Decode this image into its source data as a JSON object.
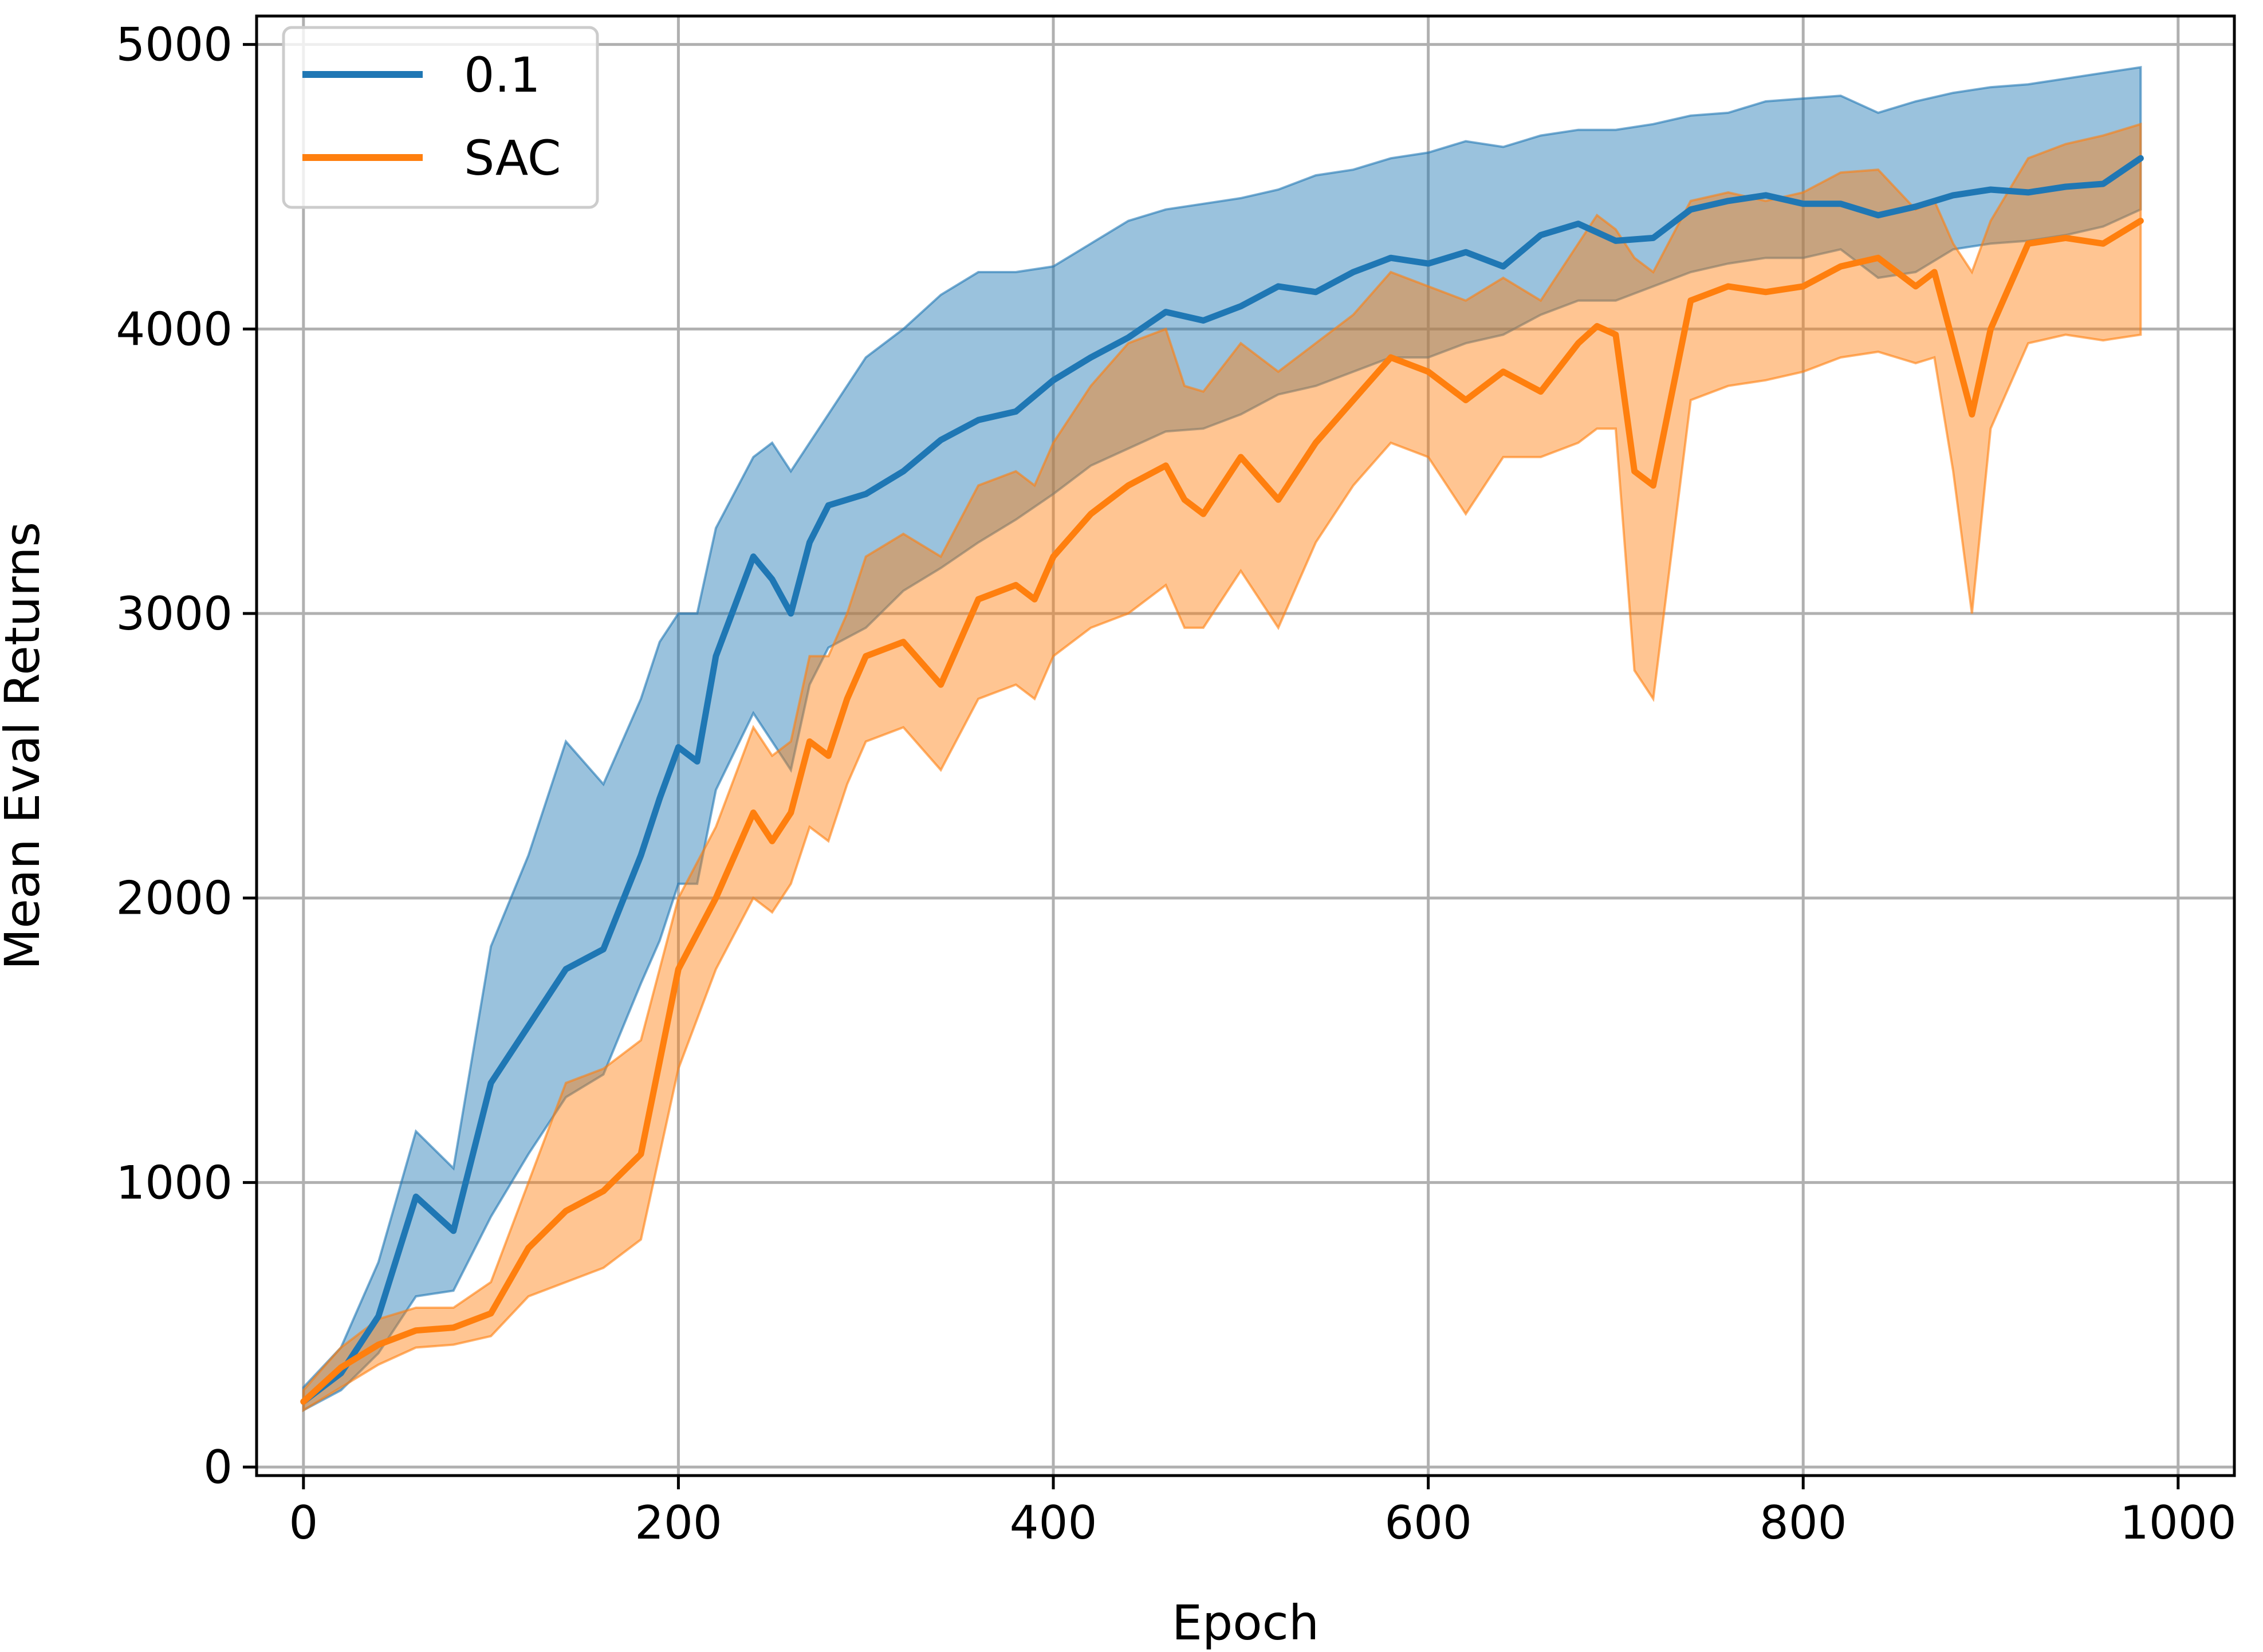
{
  "colors": {
    "series_0": "#1f77b4",
    "series_1": "#ff7f0e"
  },
  "chart_data": {
    "type": "line",
    "title": "",
    "xlabel": "Epoch",
    "ylabel": "Mean Eval Returns",
    "xlim": [
      -25,
      1030
    ],
    "ylim": [
      -30,
      5100
    ],
    "xticks": [
      0,
      200,
      400,
      600,
      800,
      1000
    ],
    "yticks": [
      0,
      1000,
      2000,
      3000,
      4000,
      5000
    ],
    "grid": true,
    "legend": "top-left",
    "series": [
      {
        "name": "0.1",
        "color": "#1f77b4",
        "x": [
          0,
          20,
          40,
          60,
          80,
          100,
          120,
          140,
          160,
          180,
          190,
          200,
          210,
          220,
          240,
          250,
          260,
          270,
          280,
          300,
          320,
          340,
          360,
          380,
          400,
          420,
          440,
          460,
          480,
          500,
          520,
          540,
          560,
          580,
          600,
          620,
          640,
          660,
          680,
          700,
          720,
          740,
          760,
          780,
          800,
          820,
          840,
          860,
          880,
          900,
          920,
          940,
          960,
          980
        ],
        "y": [
          230,
          330,
          530,
          950,
          830,
          1350,
          1550,
          1750,
          1820,
          2150,
          2350,
          2530,
          2480,
          2850,
          3200,
          3120,
          3000,
          3250,
          3380,
          3420,
          3500,
          3610,
          3680,
          3710,
          3820,
          3900,
          3970,
          4060,
          4030,
          4080,
          4150,
          4130,
          4200,
          4250,
          4230,
          4270,
          4220,
          4330,
          4370,
          4310,
          4320,
          4420,
          4450,
          4470,
          4440,
          4440,
          4400,
          4430,
          4470,
          4490,
          4480,
          4500,
          4510,
          4600
        ],
        "lower": [
          200,
          270,
          400,
          600,
          620,
          880,
          1100,
          1300,
          1380,
          1700,
          1850,
          2050,
          2050,
          2380,
          2650,
          2550,
          2450,
          2750,
          2880,
          2950,
          3080,
          3160,
          3250,
          3330,
          3420,
          3520,
          3580,
          3640,
          3650,
          3700,
          3770,
          3800,
          3850,
          3900,
          3900,
          3950,
          3980,
          4050,
          4100,
          4100,
          4150,
          4200,
          4230,
          4250,
          4250,
          4280,
          4180,
          4200,
          4280,
          4300,
          4310,
          4330,
          4360,
          4420
        ],
        "upper": [
          280,
          420,
          720,
          1180,
          1050,
          1830,
          2150,
          2550,
          2400,
          2700,
          2900,
          3000,
          3000,
          3300,
          3550,
          3600,
          3500,
          3600,
          3700,
          3900,
          4000,
          4120,
          4200,
          4200,
          4220,
          4300,
          4380,
          4420,
          4440,
          4460,
          4490,
          4540,
          4560,
          4600,
          4620,
          4660,
          4640,
          4680,
          4700,
          4700,
          4720,
          4750,
          4760,
          4800,
          4810,
          4820,
          4760,
          4800,
          4830,
          4850,
          4860,
          4880,
          4900,
          4920
        ]
      },
      {
        "name": "SAC",
        "color": "#ff7f0e",
        "x": [
          0,
          20,
          40,
          60,
          80,
          100,
          120,
          140,
          160,
          180,
          200,
          220,
          240,
          250,
          260,
          270,
          280,
          290,
          300,
          320,
          340,
          360,
          380,
          390,
          400,
          420,
          440,
          460,
          470,
          480,
          500,
          520,
          540,
          560,
          580,
          600,
          620,
          640,
          660,
          680,
          690,
          700,
          710,
          720,
          740,
          760,
          780,
          800,
          820,
          840,
          860,
          870,
          880,
          890,
          900,
          920,
          940,
          960,
          980
        ],
        "y": [
          230,
          350,
          430,
          480,
          490,
          540,
          770,
          900,
          970,
          1100,
          1750,
          2000,
          2300,
          2200,
          2300,
          2550,
          2500,
          2700,
          2850,
          2900,
          2750,
          3050,
          3100,
          3050,
          3200,
          3350,
          3450,
          3520,
          3400,
          3350,
          3550,
          3400,
          3600,
          3750,
          3900,
          3850,
          3750,
          3850,
          3780,
          3950,
          4010,
          3980,
          3500,
          3450,
          4100,
          4150,
          4130,
          4150,
          4220,
          4250,
          4150,
          4200,
          3950,
          3700,
          4000,
          4300,
          4320,
          4300,
          4380
        ],
        "lower": [
          200,
          280,
          360,
          420,
          430,
          460,
          600,
          650,
          700,
          800,
          1400,
          1750,
          2000,
          1950,
          2050,
          2250,
          2200,
          2400,
          2550,
          2600,
          2450,
          2700,
          2750,
          2700,
          2850,
          2950,
          3000,
          3100,
          2950,
          2950,
          3150,
          2950,
          3250,
          3450,
          3600,
          3550,
          3350,
          3550,
          3550,
          3600,
          3650,
          3650,
          2800,
          2700,
          3750,
          3800,
          3820,
          3850,
          3900,
          3920,
          3880,
          3900,
          3500,
          3000,
          3650,
          3950,
          3980,
          3960,
          3980
        ],
        "upper": [
          270,
          420,
          520,
          560,
          560,
          650,
          1000,
          1350,
          1400,
          1500,
          2000,
          2250,
          2600,
          2500,
          2550,
          2850,
          2850,
          3000,
          3200,
          3280,
          3200,
          3450,
          3500,
          3450,
          3600,
          3800,
          3950,
          4000,
          3800,
          3780,
          3950,
          3850,
          3950,
          4050,
          4200,
          4150,
          4100,
          4180,
          4100,
          4300,
          4400,
          4350,
          4250,
          4200,
          4450,
          4480,
          4450,
          4480,
          4550,
          4560,
          4420,
          4450,
          4300,
          4200,
          4380,
          4600,
          4650,
          4680,
          4720
        ]
      }
    ]
  }
}
